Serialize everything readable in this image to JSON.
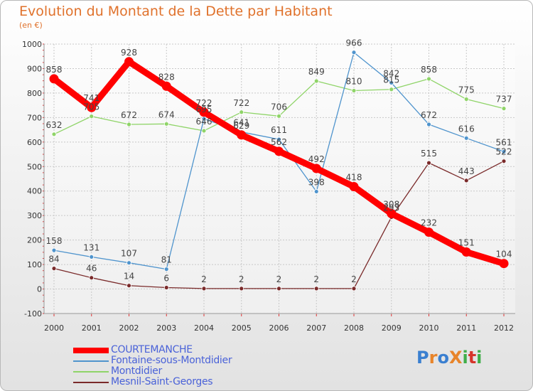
{
  "title": "Evolution du Montant de la Dette par Habitant",
  "subtitle": "(en €)",
  "logo": {
    "text": "ProXiti",
    "letter_colors": [
      "#3a7fd0",
      "#e8842a",
      "#3a7fd0",
      "#e8842a",
      "#3fae49",
      "#d6352b",
      "#3fae49"
    ]
  },
  "chart_data": {
    "type": "line",
    "x": [
      "2000",
      "2001",
      "2002",
      "2003",
      "2004",
      "2005",
      "2006",
      "2007",
      "2008",
      "2009",
      "2010",
      "2011",
      "2012"
    ],
    "ylim": [
      -100,
      1000
    ],
    "yticks": [
      "-100",
      "0",
      "100",
      "200",
      "300",
      "400",
      "500",
      "600",
      "700",
      "800",
      "900",
      "1000"
    ],
    "grid": true,
    "legend_position": "bottom-left",
    "series": [
      {
        "name": "COURTEMANCHE",
        "color": "#ff0000",
        "values": [
          858,
          741,
          928,
          828,
          722,
          629,
          562,
          492,
          418,
          308,
          232,
          151,
          104
        ],
        "labels": [
          "858",
          "741",
          "928",
          "828",
          "722",
          "629",
          "562",
          "492",
          "418",
          "308",
          "232",
          "151",
          "104"
        ]
      },
      {
        "name": "Fontaine-sous-Montdidier",
        "color": "#4f94cd",
        "values": [
          158,
          131,
          107,
          81,
          695,
          641,
          611,
          398,
          966,
          842,
          672,
          616,
          561
        ],
        "labels": [
          "158",
          "131",
          "107",
          "81",
          "695",
          "641",
          "611",
          "398",
          "966",
          "842",
          "672",
          "616",
          "561"
        ]
      },
      {
        "name": "Montdidier",
        "color": "#8fd468",
        "values": [
          632,
          705,
          672,
          674,
          646,
          722,
          706,
          849,
          810,
          815,
          858,
          775,
          737
        ],
        "labels": [
          "632",
          "705",
          "672",
          "674",
          "646",
          "722",
          "706",
          "849",
          "810",
          "815",
          "858",
          "775",
          "737"
        ]
      },
      {
        "name": "Mesnil-Saint-Georges",
        "color": "#7a2a2a",
        "values": [
          84,
          46,
          14,
          6,
          2,
          2,
          2,
          2,
          2,
          293,
          515,
          443,
          522
        ],
        "labels": [
          "84",
          "46",
          "14",
          "6",
          "2",
          "2",
          "2",
          "2",
          "2",
          "293",
          "515",
          "443",
          "522"
        ]
      }
    ]
  }
}
